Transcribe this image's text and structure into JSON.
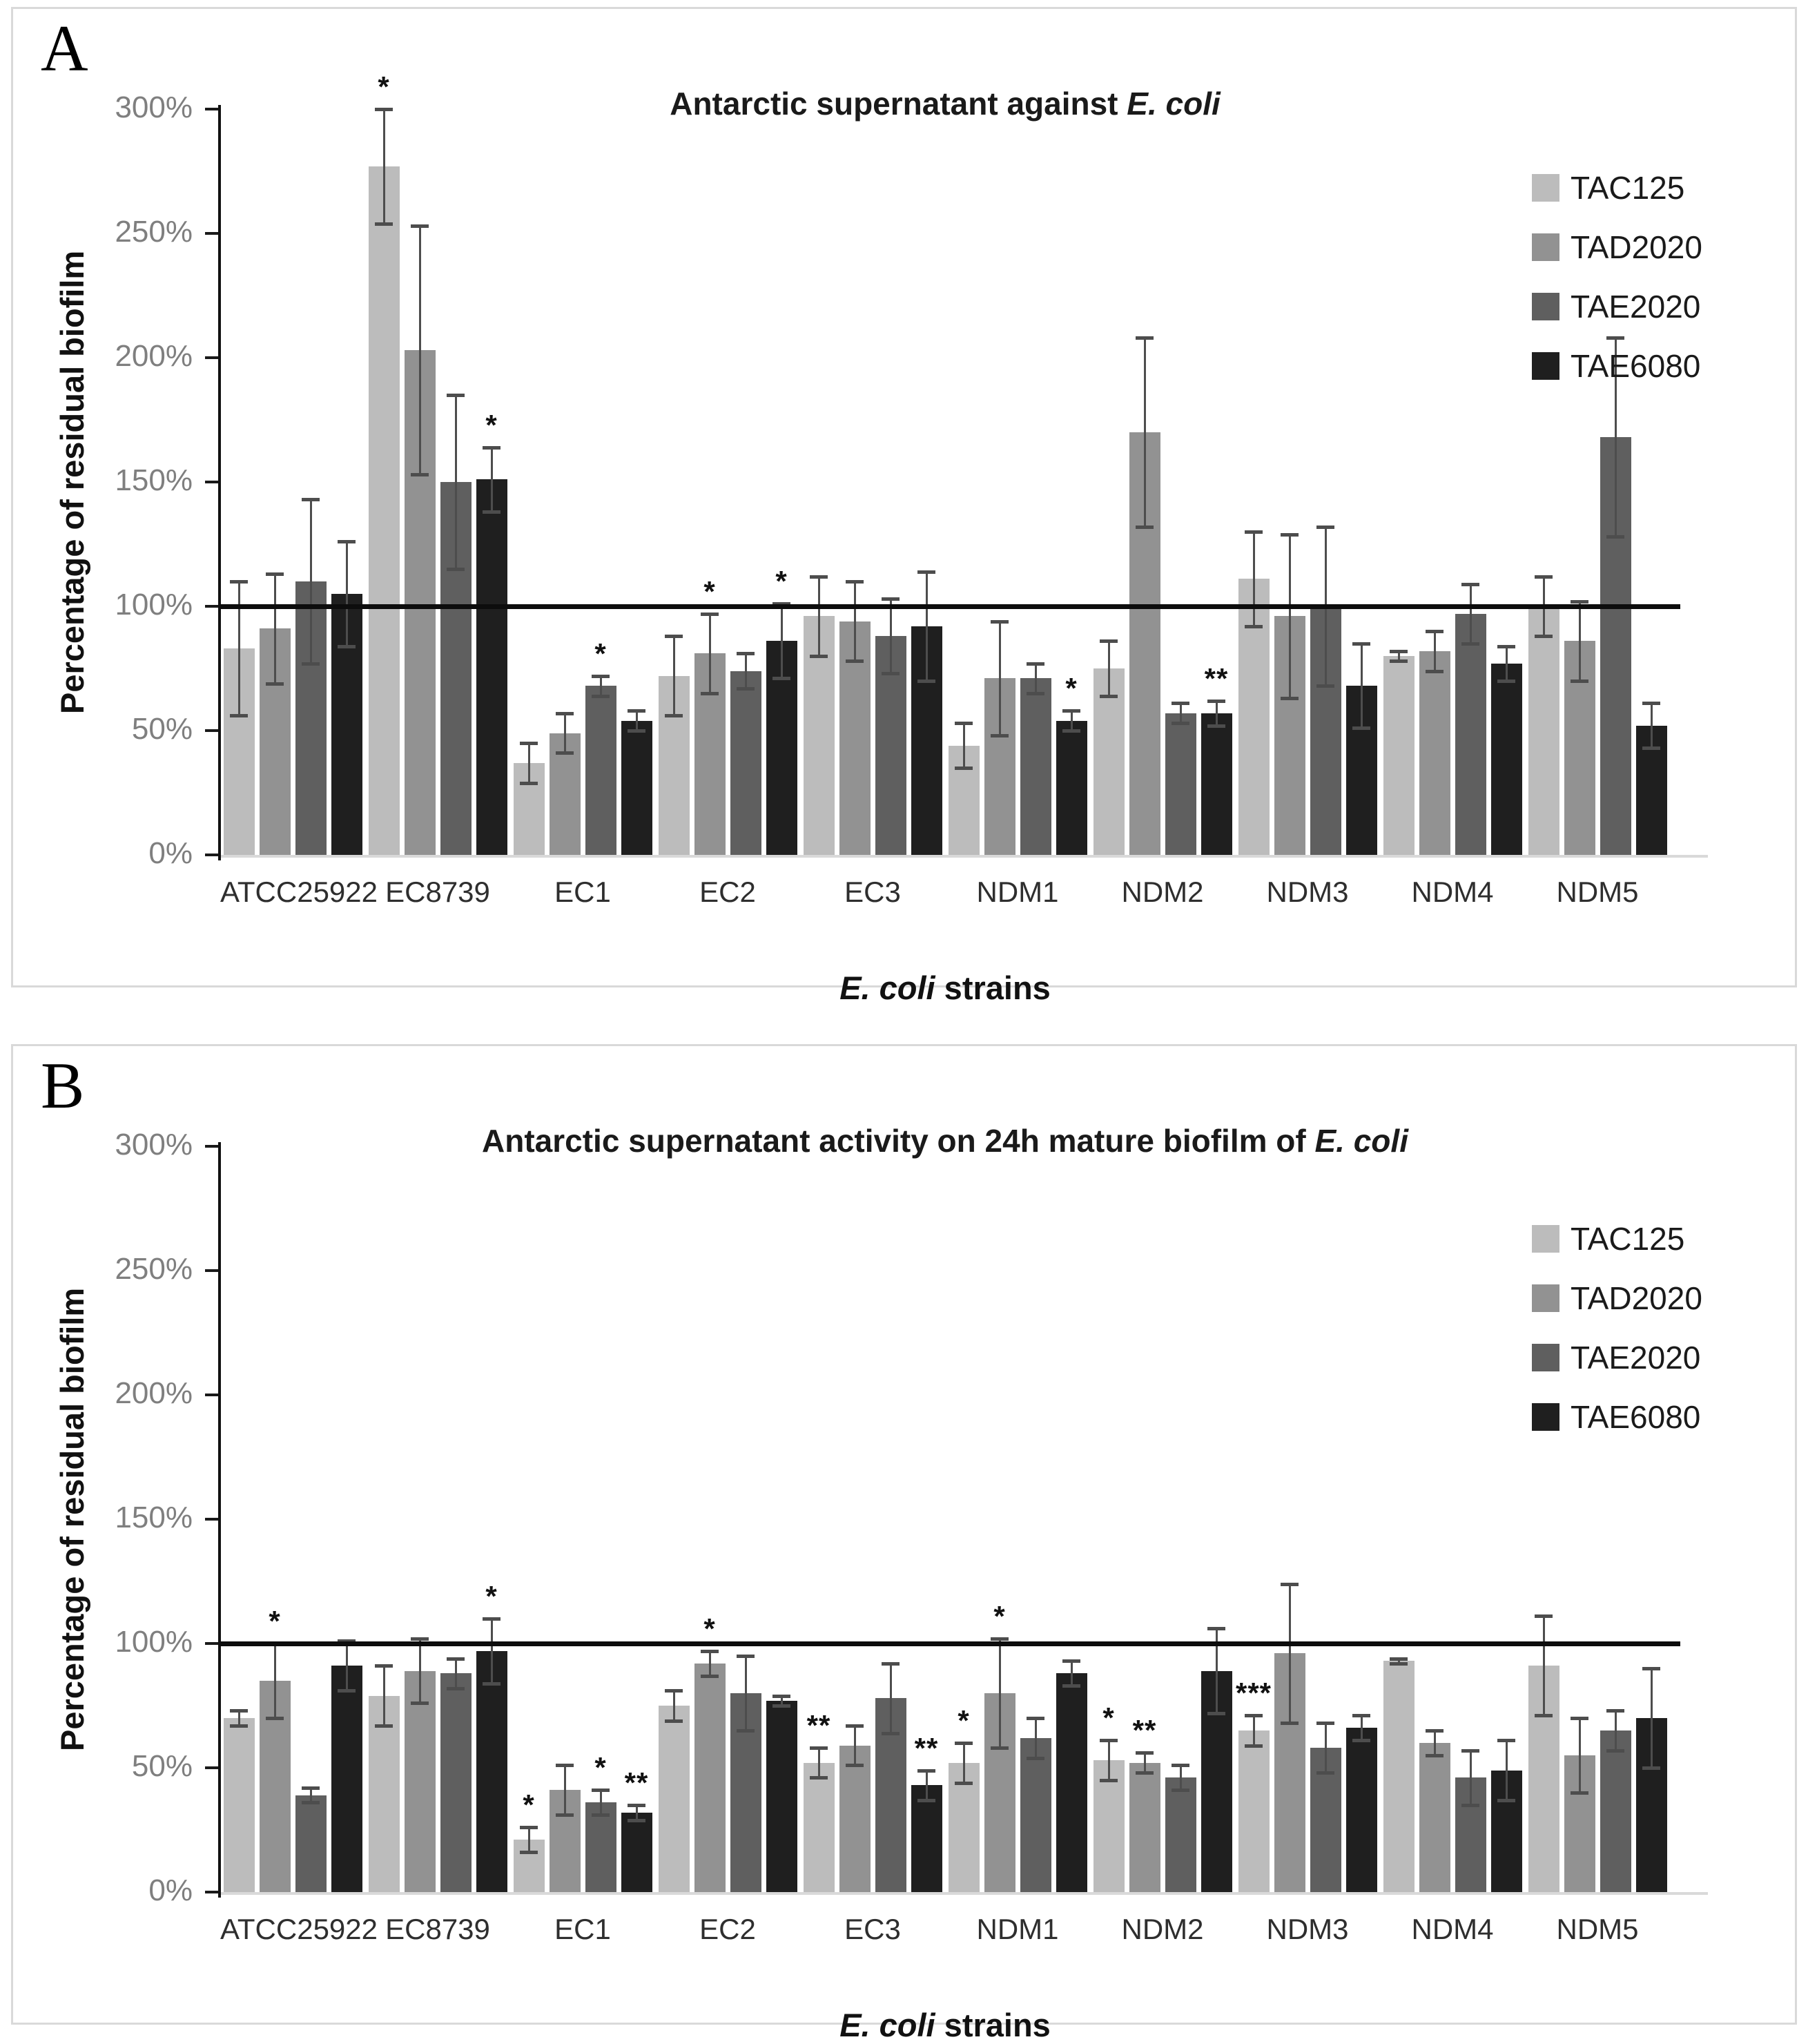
{
  "figure": {
    "panel_a_label": "A",
    "panel_b_label": "B"
  },
  "chart_data": [
    {
      "type": "bar",
      "panel_label": "A",
      "title_plain": "Antarctic supernatant against ",
      "title_italic": "E. coli",
      "ylabel": "Percentage of residual biofilm",
      "xlabel_italic": "E. coli",
      "xlabel_plain": " strains",
      "ylim": [
        0,
        300
      ],
      "ytick_labels": [
        "0%",
        "50%",
        "100%",
        "150%",
        "200%",
        "250%",
        "300%"
      ],
      "reference_line": 100,
      "reference_line_color": "#0d0d0d",
      "error_bar_color": "#4d4d4d",
      "legend_position": "right",
      "grid": "off",
      "categories": [
        "ATCC25922",
        "EC8739",
        "EC1",
        "EC2",
        "EC3",
        "NDM1",
        "NDM2",
        "NDM3",
        "NDM4",
        "NDM5"
      ],
      "series": [
        {
          "name": "TAC125",
          "color": "#bcbcbc",
          "values": [
            83,
            277,
            37,
            72,
            96,
            44,
            75,
            111,
            80,
            100
          ],
          "errors": [
            27,
            23,
            8,
            16,
            16,
            9,
            11,
            19,
            2,
            12
          ],
          "sig": [
            "",
            "*",
            "",
            "",
            "",
            "",
            "",
            "",
            "",
            ""
          ]
        },
        {
          "name": "TAD2020",
          "color": "#929292",
          "values": [
            91,
            203,
            49,
            81,
            94,
            71,
            170,
            96,
            82,
            86
          ],
          "errors": [
            22,
            50,
            8,
            16,
            16,
            23,
            38,
            33,
            8,
            16
          ],
          "sig": [
            "",
            "",
            "",
            "*",
            "",
            "",
            "",
            "",
            "",
            ""
          ]
        },
        {
          "name": "TAE2020",
          "color": "#5f5f5f",
          "values": [
            110,
            150,
            68,
            74,
            88,
            71,
            57,
            100,
            97,
            168
          ],
          "errors": [
            33,
            35,
            4,
            7,
            15,
            6,
            4,
            32,
            12,
            40
          ],
          "sig": [
            "",
            "",
            "*",
            "",
            "",
            "",
            "",
            "",
            "",
            ""
          ]
        },
        {
          "name": "TAE6080",
          "color": "#1f1f1f",
          "values": [
            105,
            151,
            54,
            86,
            92,
            54,
            57,
            68,
            77,
            52
          ],
          "errors": [
            21,
            13,
            4,
            15,
            22,
            4,
            5,
            17,
            7,
            9
          ],
          "sig": [
            "",
            "*",
            "",
            "*",
            "",
            "*",
            "**",
            "",
            "",
            ""
          ]
        }
      ]
    },
    {
      "type": "bar",
      "panel_label": "B",
      "title_plain": "Antarctic supernatant activity on 24h mature biofilm of ",
      "title_italic": "E. coli",
      "ylabel": "Percentage of residual biofilm",
      "xlabel_italic": "E. coli",
      "xlabel_plain": " strains",
      "ylim": [
        0,
        300
      ],
      "ytick_labels": [
        "0%",
        "50%",
        "100%",
        "150%",
        "200%",
        "250%",
        "300%"
      ],
      "reference_line": 100,
      "reference_line_color": "#0d0d0d",
      "error_bar_color": "#4d4d4d",
      "legend_position": "right",
      "grid": "off",
      "categories": [
        "ATCC25922",
        "EC8739",
        "EC1",
        "EC2",
        "EC3",
        "NDM1",
        "NDM2",
        "NDM3",
        "NDM4",
        "NDM5"
      ],
      "series": [
        {
          "name": "TAC125",
          "color": "#bcbcbc",
          "values": [
            70,
            79,
            21,
            75,
            52,
            52,
            53,
            65,
            93,
            91
          ],
          "errors": [
            3,
            12,
            5,
            6,
            6,
            8,
            8,
            6,
            1,
            20
          ],
          "sig": [
            "",
            "",
            "*",
            "",
            "**",
            "*",
            "*",
            "***",
            "",
            ""
          ]
        },
        {
          "name": "TAD2020",
          "color": "#929292",
          "values": [
            85,
            89,
            41,
            92,
            59,
            80,
            52,
            96,
            60,
            55
          ],
          "errors": [
            15,
            13,
            10,
            5,
            8,
            22,
            4,
            28,
            5,
            15
          ],
          "sig": [
            "*",
            "",
            "",
            "*",
            "",
            "*",
            "**",
            "",
            "",
            ""
          ]
        },
        {
          "name": "TAE2020",
          "color": "#5f5f5f",
          "values": [
            39,
            88,
            36,
            80,
            78,
            62,
            46,
            58,
            46,
            65
          ],
          "errors": [
            3,
            6,
            5,
            15,
            14,
            8,
            5,
            10,
            11,
            8
          ],
          "sig": [
            "",
            "",
            "*",
            "",
            "",
            "",
            "",
            "",
            "",
            ""
          ]
        },
        {
          "name": "TAE6080",
          "color": "#1f1f1f",
          "values": [
            91,
            97,
            32,
            77,
            43,
            88,
            89,
            66,
            49,
            70
          ],
          "errors": [
            10,
            13,
            3,
            2,
            6,
            5,
            17,
            5,
            12,
            20
          ],
          "sig": [
            "",
            "*",
            "**",
            "",
            "**",
            "",
            "",
            "",
            "",
            ""
          ]
        }
      ]
    }
  ]
}
